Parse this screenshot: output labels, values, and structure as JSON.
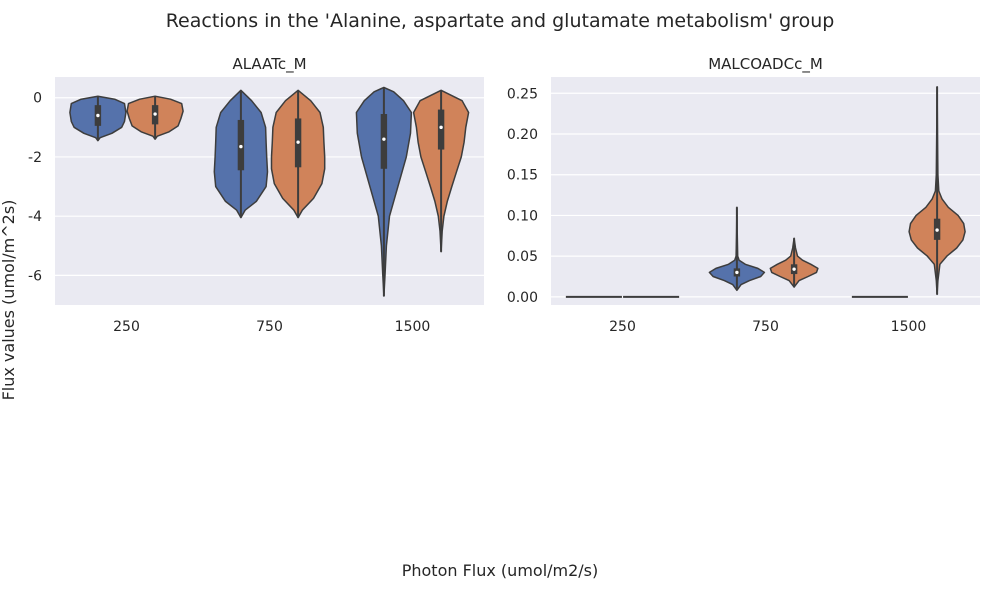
{
  "figure": {
    "title": "Reactions in the 'Alanine, aspartate and glutamate metabolism' group",
    "xlabel": "Photon Flux (umol/m2/s)",
    "ylabel": "Flux values (umol/m^2s)",
    "background": "#ffffff",
    "panel_background": "#eaeaf2",
    "grid_color": "#ffffff",
    "violin_edge_color": "#3d3d3d",
    "series_colors": [
      "#5572ab",
      "#d0835a"
    ]
  },
  "chart_data": [
    {
      "type": "violin",
      "title": "ALAATc_M",
      "categories": [
        "250",
        "750",
        "1500"
      ],
      "ylim": [
        -7.0,
        0.7
      ],
      "yticks": [
        0,
        -2,
        -4,
        -6
      ],
      "grid": true,
      "series": [
        {
          "color": "#5572ab",
          "violins": [
            {
              "min": -1.45,
              "q1": -0.95,
              "median": -0.6,
              "q3": -0.25,
              "max": 0.05,
              "profile": [
                [
                  -1.45,
                  0
                ],
                [
                  -1.35,
                  0.08
                ],
                [
                  -1.2,
                  0.5
                ],
                [
                  -1.0,
                  0.85
                ],
                [
                  -0.8,
                  0.95
                ],
                [
                  -0.5,
                  1.0
                ],
                [
                  -0.2,
                  0.95
                ],
                [
                  -0.05,
                  0.6
                ],
                [
                  0.05,
                  0
                ]
              ]
            },
            {
              "min": -4.05,
              "q1": -2.45,
              "median": -1.65,
              "q3": -0.75,
              "max": 0.25,
              "profile": [
                [
                  -4.05,
                  0
                ],
                [
                  -3.8,
                  0.15
                ],
                [
                  -3.5,
                  0.55
                ],
                [
                  -3.0,
                  0.9
                ],
                [
                  -2.5,
                  0.95
                ],
                [
                  -2.0,
                  0.92
                ],
                [
                  -1.5,
                  0.9
                ],
                [
                  -1.0,
                  0.88
                ],
                [
                  -0.5,
                  0.72
                ],
                [
                  -0.1,
                  0.38
                ],
                [
                  0.25,
                  0
                ]
              ]
            },
            {
              "min": -6.7,
              "q1": -2.4,
              "median": -1.4,
              "q3": -0.55,
              "max": 0.35,
              "profile": [
                [
                  -6.7,
                  0
                ],
                [
                  -6.0,
                  0.04
                ],
                [
                  -5.0,
                  0.09
                ],
                [
                  -4.0,
                  0.2
                ],
                [
                  -3.0,
                  0.5
                ],
                [
                  -2.0,
                  0.8
                ],
                [
                  -1.2,
                  0.95
                ],
                [
                  -0.5,
                  0.98
                ],
                [
                  -0.1,
                  0.7
                ],
                [
                  0.2,
                  0.35
                ],
                [
                  0.35,
                  0
                ]
              ]
            }
          ]
        },
        {
          "color": "#d0835a",
          "violins": [
            {
              "min": -1.4,
              "q1": -0.9,
              "median": -0.55,
              "q3": -0.25,
              "max": 0.05,
              "profile": [
                [
                  -1.4,
                  0
                ],
                [
                  -1.3,
                  0.08
                ],
                [
                  -1.15,
                  0.5
                ],
                [
                  -0.95,
                  0.82
                ],
                [
                  -0.7,
                  0.92
                ],
                [
                  -0.45,
                  1.0
                ],
                [
                  -0.2,
                  0.95
                ],
                [
                  -0.05,
                  0.55
                ],
                [
                  0.05,
                  0
                ]
              ]
            },
            {
              "min": -4.05,
              "q1": -2.35,
              "median": -1.5,
              "q3": -0.7,
              "max": 0.25,
              "profile": [
                [
                  -4.05,
                  0
                ],
                [
                  -3.8,
                  0.15
                ],
                [
                  -3.4,
                  0.55
                ],
                [
                  -2.9,
                  0.85
                ],
                [
                  -2.4,
                  0.95
                ],
                [
                  -2.0,
                  0.95
                ],
                [
                  -1.5,
                  0.92
                ],
                [
                  -1.0,
                  0.9
                ],
                [
                  -0.5,
                  0.78
                ],
                [
                  -0.1,
                  0.45
                ],
                [
                  0.25,
                  0
                ]
              ]
            },
            {
              "min": -5.2,
              "q1": -1.75,
              "median": -1.0,
              "q3": -0.4,
              "max": 0.25,
              "profile": [
                [
                  -5.2,
                  0
                ],
                [
                  -4.5,
                  0.04
                ],
                [
                  -4.0,
                  0.1
                ],
                [
                  -3.5,
                  0.22
                ],
                [
                  -3.0,
                  0.38
                ],
                [
                  -2.5,
                  0.55
                ],
                [
                  -2.0,
                  0.72
                ],
                [
                  -1.5,
                  0.82
                ],
                [
                  -1.0,
                  0.88
                ],
                [
                  -0.5,
                  0.98
                ],
                [
                  -0.1,
                  0.75
                ],
                [
                  0.25,
                  0
                ]
              ]
            }
          ]
        }
      ]
    },
    {
      "type": "violin",
      "title": "MALCOADCc_M",
      "categories": [
        "250",
        "750",
        "1500"
      ],
      "ylim": [
        -0.01,
        0.27
      ],
      "yticks": [
        0.0,
        0.05,
        0.1,
        0.15,
        0.2,
        0.25
      ],
      "grid": true,
      "series": [
        {
          "color": "#5572ab",
          "violins": [
            {
              "min": 0.0,
              "q1": 0.0,
              "median": 0.0,
              "q3": 0.0,
              "max": 0.0,
              "profile": []
            },
            {
              "min": 0.01,
              "q1": 0.025,
              "median": 0.03,
              "q3": 0.035,
              "max": 0.11,
              "profile": [
                [
                  0.008,
                  0
                ],
                [
                  0.015,
                  0.15
                ],
                [
                  0.02,
                  0.45
                ],
                [
                  0.025,
                  0.85
                ],
                [
                  0.03,
                  0.98
                ],
                [
                  0.035,
                  0.75
                ],
                [
                  0.04,
                  0.3
                ],
                [
                  0.045,
                  0.08
                ],
                [
                  0.05,
                  0.03
                ],
                [
                  0.08,
                  0.01
                ],
                [
                  0.11,
                  0
                ]
              ]
            },
            {
              "min": 0.0,
              "q1": 0.0,
              "median": 0.0,
              "q3": 0.0,
              "max": 0.0,
              "profile": []
            }
          ]
        },
        {
          "color": "#d0835a",
          "violins": [
            {
              "min": 0.0,
              "q1": 0.0,
              "median": 0.0,
              "q3": 0.0,
              "max": 0.0,
              "profile": []
            },
            {
              "min": 0.012,
              "q1": 0.028,
              "median": 0.034,
              "q3": 0.04,
              "max": 0.072,
              "profile": [
                [
                  0.012,
                  0
                ],
                [
                  0.02,
                  0.18
                ],
                [
                  0.025,
                  0.5
                ],
                [
                  0.03,
                  0.8
                ],
                [
                  0.035,
                  0.85
                ],
                [
                  0.04,
                  0.6
                ],
                [
                  0.045,
                  0.3
                ],
                [
                  0.05,
                  0.12
                ],
                [
                  0.06,
                  0.05
                ],
                [
                  0.072,
                  0
                ]
              ]
            },
            {
              "min": 0.003,
              "q1": 0.07,
              "median": 0.082,
              "q3": 0.096,
              "max": 0.258,
              "profile": [
                [
                  0.003,
                  0
                ],
                [
                  0.02,
                  0.03
                ],
                [
                  0.04,
                  0.1
                ],
                [
                  0.05,
                  0.35
                ],
                [
                  0.06,
                  0.7
                ],
                [
                  0.07,
                  0.92
                ],
                [
                  0.08,
                  1.0
                ],
                [
                  0.09,
                  0.95
                ],
                [
                  0.1,
                  0.75
                ],
                [
                  0.11,
                  0.4
                ],
                [
                  0.12,
                  0.18
                ],
                [
                  0.13,
                  0.06
                ],
                [
                  0.15,
                  0.03
                ],
                [
                  0.2,
                  0.015
                ],
                [
                  0.258,
                  0
                ]
              ]
            }
          ]
        }
      ]
    }
  ]
}
